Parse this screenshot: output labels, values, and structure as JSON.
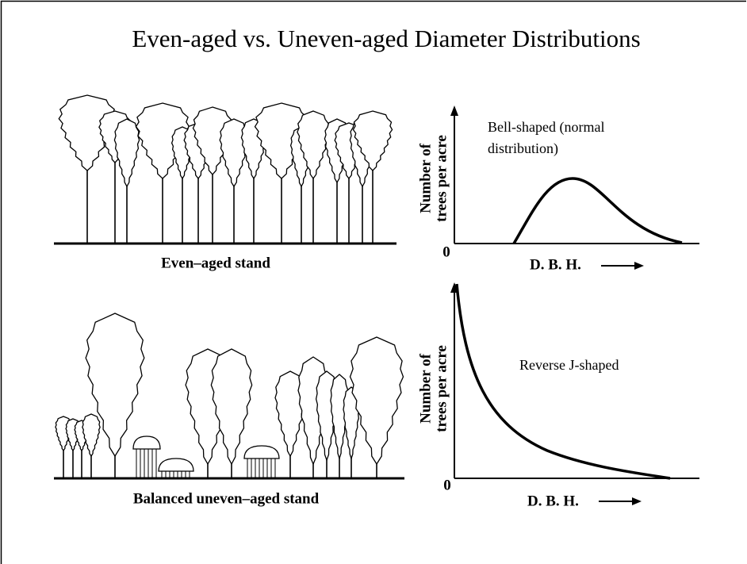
{
  "title": "Even-aged vs. Uneven-aged Diameter Distributions",
  "panels": [
    {
      "stand_label": "Even–aged stand",
      "y_axis_label": [
        "Number of",
        "trees per acre"
      ],
      "origin_label": "0",
      "x_axis_label": "D. B. H.",
      "curve_label": [
        "Bell-shaped (normal",
        "distribution)"
      ]
    },
    {
      "stand_label": "Balanced uneven–aged stand",
      "y_axis_label": [
        "Number of",
        "trees per acre"
      ],
      "origin_label": "0",
      "x_axis_label": "D. B. H.",
      "curve_label": [
        "Reverse J-shaped"
      ]
    }
  ]
}
